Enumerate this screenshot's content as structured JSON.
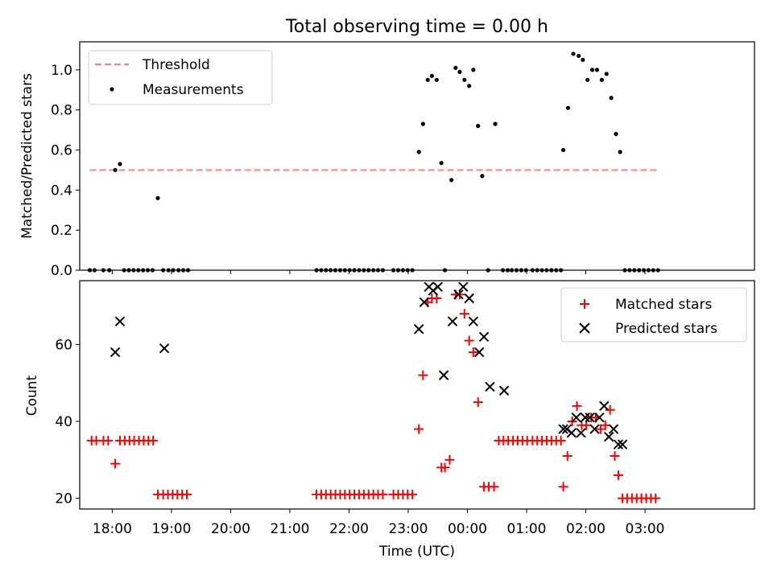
{
  "chart_data": [
    {
      "type": "scatter",
      "title": "Total observing time = 0.00 h",
      "xlabel": "",
      "ylabel": "Matched/Predicted stars",
      "xlim": [
        -0.55,
        10.85
      ],
      "ylim": [
        0,
        1.14
      ],
      "yticks": [
        0.0,
        0.2,
        0.4,
        0.6,
        0.8,
        1.0
      ],
      "ytick_labels": [
        "0.0",
        "0.2",
        "0.4",
        "0.6",
        "0.8",
        "1.0"
      ],
      "legend": {
        "placement": "top-left",
        "entries": [
          "Threshold",
          "Measurements"
        ]
      },
      "threshold": {
        "name": "Threshold",
        "y": 0.5,
        "x_range": [
          -0.38,
          9.2
        ],
        "color": "#ff7f7f"
      },
      "series": [
        {
          "name": "Measurements",
          "marker": "dot",
          "color": "#000000",
          "x": [
            -0.38,
            -0.3,
            -0.15,
            -0.05,
            0.05,
            0.13,
            0.2,
            0.28,
            0.36,
            0.44,
            0.52,
            0.6,
            0.68,
            0.77,
            0.86,
            0.95,
            1.03,
            1.12,
            1.2,
            1.28,
            3.45,
            3.53,
            3.61,
            3.69,
            3.77,
            3.85,
            3.93,
            4.01,
            4.09,
            4.17,
            4.25,
            4.33,
            4.41,
            4.49,
            4.57,
            4.75,
            4.83,
            4.91,
            4.99,
            5.07,
            5.18,
            5.25,
            5.33,
            5.4,
            5.48,
            5.56,
            5.62,
            5.73,
            5.8,
            5.87,
            5.95,
            6.03,
            6.1,
            6.18,
            6.25,
            6.35,
            6.47,
            6.6,
            6.68,
            6.75,
            6.83,
            6.91,
            6.99,
            7.1,
            7.18,
            7.26,
            7.34,
            7.42,
            7.5,
            7.58,
            7.62,
            7.7,
            7.79,
            7.88,
            7.95,
            8.03,
            8.11,
            8.19,
            8.27,
            8.35,
            8.43,
            8.51,
            8.58,
            8.66,
            8.74,
            8.82,
            8.9,
            8.98,
            9.06,
            9.14,
            9.22
          ],
          "y": [
            0,
            0,
            0,
            0,
            0.5,
            0.53,
            0,
            0,
            0,
            0,
            0,
            0,
            0,
            0.36,
            0,
            0,
            0,
            0,
            0,
            0,
            0,
            0,
            0,
            0,
            0,
            0,
            0,
            0,
            0,
            0,
            0,
            0,
            0,
            0,
            0,
            0,
            0,
            0,
            0,
            0,
            0.59,
            0.73,
            0.95,
            0.97,
            0.95,
            0.535,
            0,
            0.45,
            1.01,
            0.99,
            0.95,
            0.92,
            1.0,
            0.72,
            0.47,
            0,
            0.73,
            0,
            0,
            0,
            0,
            0,
            0,
            0,
            0,
            0,
            0,
            0,
            0,
            0,
            0.6,
            0.81,
            1.08,
            1.07,
            1.05,
            0.95,
            1.0,
            1.0,
            0.95,
            0.98,
            0.86,
            0.68,
            0.59,
            0,
            0,
            0,
            0,
            0,
            0,
            0,
            0
          ]
        }
      ]
    },
    {
      "type": "scatter",
      "title": "",
      "xlabel": "Time (UTC)",
      "ylabel": "Count",
      "xlim": [
        -0.55,
        10.85
      ],
      "ylim": [
        17.2,
        76.6
      ],
      "yticks": [
        20,
        40,
        60
      ],
      "ytick_labels": [
        "20",
        "40",
        "60"
      ],
      "xticks": [
        0,
        1,
        2,
        3,
        4,
        5,
        6,
        7,
        8,
        9
      ],
      "xtick_labels": [
        "18:00",
        "19:00",
        "20:00",
        "21:00",
        "22:00",
        "23:00",
        "00:00",
        "01:00",
        "02:00",
        "03:00"
      ],
      "legend": {
        "placement": "top-right",
        "entries": [
          "Matched stars",
          "Predicted stars"
        ]
      },
      "series": [
        {
          "name": "Matched stars",
          "marker": "plus",
          "color": "#ff0000",
          "x": [
            -0.35,
            -0.27,
            -0.15,
            -0.07,
            0.05,
            0.13,
            0.21,
            0.29,
            0.37,
            0.45,
            0.53,
            0.61,
            0.69,
            0.77,
            0.86,
            0.94,
            1.02,
            1.1,
            1.18,
            1.26,
            3.45,
            3.53,
            3.61,
            3.69,
            3.77,
            3.85,
            3.93,
            4.01,
            4.09,
            4.17,
            4.25,
            4.33,
            4.41,
            4.49,
            4.57,
            4.75,
            4.83,
            4.91,
            4.99,
            5.07,
            5.18,
            5.25,
            5.33,
            5.4,
            5.48,
            5.56,
            5.62,
            5.7,
            5.8,
            5.87,
            5.95,
            6.03,
            6.1,
            6.18,
            6.28,
            6.36,
            6.45,
            6.53,
            6.61,
            6.69,
            6.77,
            6.85,
            6.93,
            7.01,
            7.1,
            7.18,
            7.26,
            7.34,
            7.42,
            7.5,
            7.58,
            7.62,
            7.69,
            7.77,
            7.85,
            7.93,
            8.01,
            8.09,
            8.17,
            8.25,
            8.33,
            8.41,
            8.49,
            8.55,
            8.62,
            8.7,
            8.78,
            8.86,
            8.94,
            9.02,
            9.1,
            9.18
          ],
          "y": [
            35,
            35,
            35,
            35,
            29,
            35,
            35,
            35,
            35,
            35,
            35,
            35,
            35,
            21,
            21,
            21,
            21,
            21,
            21,
            21,
            21,
            21,
            21,
            21,
            21,
            21,
            21,
            21,
            21,
            21,
            21,
            21,
            21,
            21,
            21,
            21,
            21,
            21,
            21,
            21,
            38,
            52,
            71,
            72,
            72,
            28,
            28,
            30,
            73,
            73,
            68,
            61,
            58,
            45,
            23,
            23,
            23,
            35,
            35,
            35,
            35,
            35,
            35,
            35,
            35,
            35,
            35,
            35,
            35,
            35,
            35,
            23,
            31,
            40,
            44,
            39,
            39,
            41,
            41,
            38,
            39,
            43,
            31,
            26,
            20,
            20,
            20,
            20,
            20,
            20,
            20,
            20
          ]
        },
        {
          "name": "Predicted stars",
          "marker": "x",
          "color": "#000000",
          "x": [
            0.05,
            0.13,
            0.88,
            5.18,
            5.27,
            5.35,
            5.42,
            5.5,
            5.6,
            5.75,
            5.85,
            5.93,
            6.03,
            6.1,
            6.2,
            6.28,
            6.38,
            6.62,
            7.62,
            7.68,
            7.76,
            7.84,
            7.92,
            7.99,
            8.07,
            8.15,
            8.23,
            8.31,
            8.39,
            8.47,
            8.55,
            8.62
          ],
          "y": [
            58,
            66,
            59,
            64,
            71,
            75,
            74,
            75,
            52,
            66,
            73,
            75,
            72,
            66,
            58,
            62,
            49,
            48,
            38,
            38,
            37,
            41,
            37,
            41,
            41,
            38,
            41,
            44,
            36,
            38,
            34,
            34
          ]
        }
      ]
    }
  ]
}
